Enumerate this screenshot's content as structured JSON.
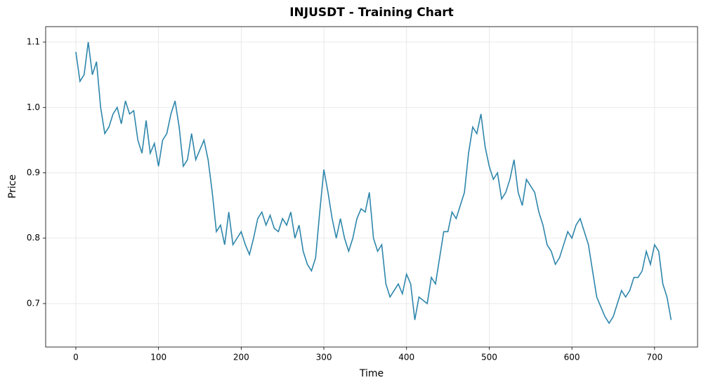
{
  "chart_data": {
    "type": "line",
    "title": "INJUSDT - Training Chart",
    "x_label": "Time",
    "y_label": "Price",
    "x": [
      0,
      5,
      10,
      15,
      20,
      25,
      30,
      35,
      40,
      45,
      50,
      55,
      60,
      65,
      70,
      75,
      80,
      85,
      90,
      95,
      100,
      105,
      110,
      115,
      120,
      125,
      130,
      135,
      140,
      145,
      150,
      155,
      160,
      165,
      170,
      175,
      180,
      185,
      190,
      195,
      200,
      205,
      210,
      215,
      220,
      225,
      230,
      235,
      240,
      245,
      250,
      255,
      260,
      265,
      270,
      275,
      280,
      285,
      290,
      295,
      300,
      305,
      310,
      315,
      320,
      325,
      330,
      335,
      340,
      345,
      350,
      355,
      360,
      365,
      370,
      375,
      380,
      385,
      390,
      395,
      400,
      405,
      410,
      415,
      420,
      425,
      430,
      435,
      440,
      445,
      450,
      455,
      460,
      465,
      470,
      475,
      480,
      485,
      490,
      495,
      500,
      505,
      510,
      515,
      520,
      525,
      530,
      535,
      540,
      545,
      550,
      555,
      560,
      565,
      570,
      575,
      580,
      585,
      590,
      595,
      600,
      605,
      610,
      615,
      620,
      625,
      630,
      635,
      640,
      645,
      650,
      655,
      660,
      665,
      670,
      675,
      680,
      685,
      690,
      695,
      700,
      705,
      710,
      715,
      720
    ],
    "series": [
      {
        "name": "Price",
        "color": "#2e86ab",
        "values": [
          1.085,
          1.04,
          1.05,
          1.1,
          1.05,
          1.07,
          1.0,
          0.96,
          0.97,
          0.99,
          1.0,
          0.975,
          1.01,
          0.99,
          0.995,
          0.95,
          0.93,
          0.98,
          0.93,
          0.945,
          0.91,
          0.95,
          0.96,
          0.99,
          1.01,
          0.97,
          0.91,
          0.92,
          0.96,
          0.92,
          0.935,
          0.95,
          0.92,
          0.87,
          0.81,
          0.82,
          0.79,
          0.84,
          0.79,
          0.8,
          0.81,
          0.79,
          0.775,
          0.8,
          0.83,
          0.84,
          0.82,
          0.835,
          0.815,
          0.81,
          0.83,
          0.82,
          0.84,
          0.8,
          0.82,
          0.78,
          0.76,
          0.75,
          0.77,
          0.84,
          0.905,
          0.87,
          0.83,
          0.8,
          0.83,
          0.8,
          0.78,
          0.8,
          0.83,
          0.845,
          0.84,
          0.87,
          0.8,
          0.78,
          0.79,
          0.73,
          0.71,
          0.72,
          0.73,
          0.715,
          0.745,
          0.73,
          0.675,
          0.71,
          0.705,
          0.7,
          0.74,
          0.73,
          0.77,
          0.81,
          0.81,
          0.84,
          0.83,
          0.85,
          0.87,
          0.93,
          0.97,
          0.96,
          0.99,
          0.94,
          0.91,
          0.89,
          0.9,
          0.86,
          0.87,
          0.89,
          0.92,
          0.87,
          0.85,
          0.89,
          0.88,
          0.87,
          0.84,
          0.82,
          0.79,
          0.78,
          0.76,
          0.77,
          0.79,
          0.81,
          0.8,
          0.82,
          0.83,
          0.81,
          0.79,
          0.75,
          0.71,
          0.695,
          0.68,
          0.67,
          0.68,
          0.7,
          0.72,
          0.71,
          0.72,
          0.74,
          0.74,
          0.75,
          0.78,
          0.76,
          0.79,
          0.78,
          0.73,
          0.71,
          0.675
        ]
      }
    ],
    "xlim": [
      -36.5,
      752
    ],
    "ylim": [
      0.6335,
      1.1236
    ],
    "xticks": [
      0,
      100,
      200,
      300,
      400,
      500,
      600,
      700
    ],
    "yticks": [
      0.7,
      0.8,
      0.9,
      {
        "value": 1,
        "label": "1.0"
      },
      1.1
    ],
    "grid": true
  }
}
